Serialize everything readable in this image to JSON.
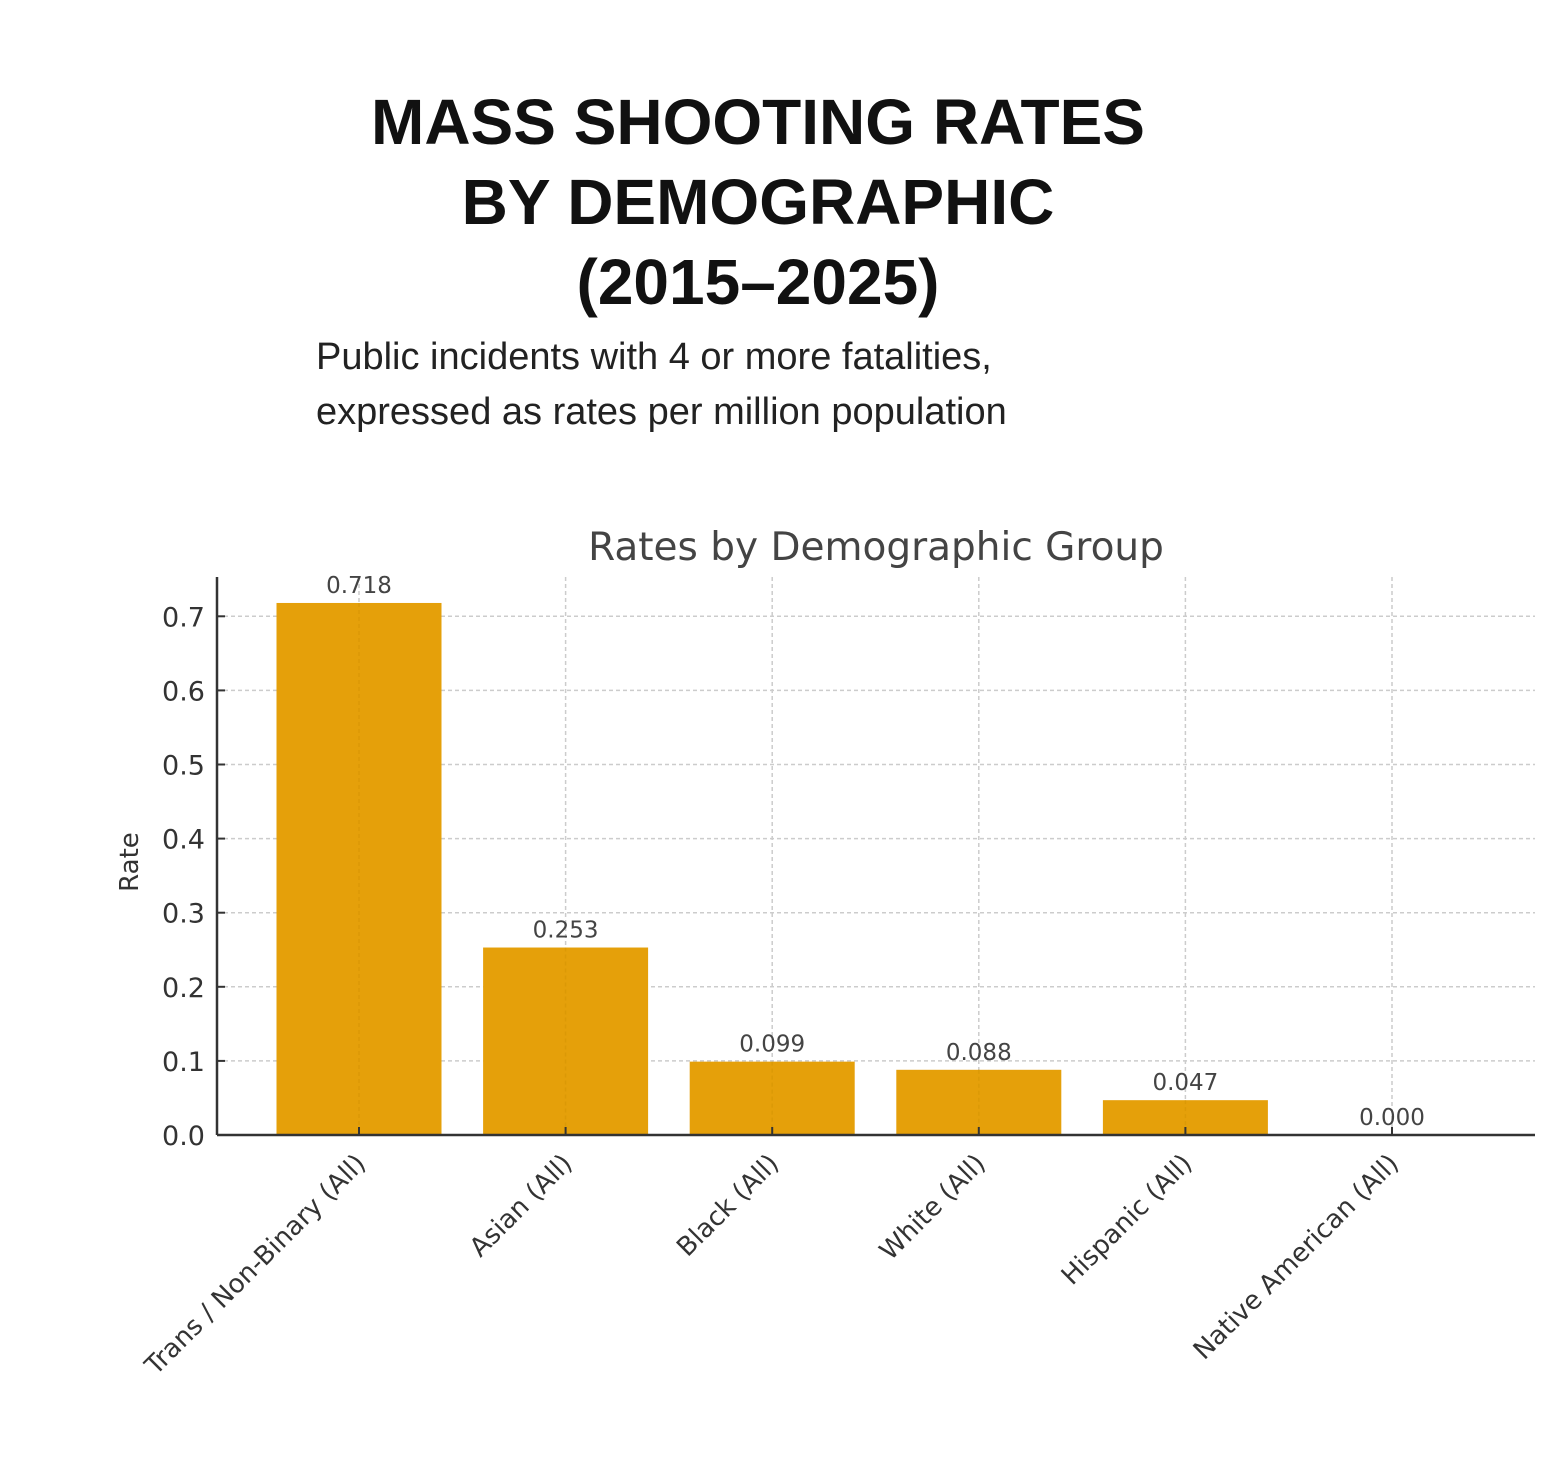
{
  "header": {
    "title_lines": [
      "MASS SHOOTING RATES",
      "BY DEMOGRAPHIC",
      "(2015–2025)"
    ],
    "subtitle_lines": [
      "Public incidents with 4 or more fatalities,",
      "expressed as rates per million population"
    ]
  },
  "chart_data": {
    "type": "bar",
    "title": "Rates by Demographic Group",
    "xlabel": "",
    "ylabel": "Rate",
    "categories": [
      "Trans / Non-Binary (All)",
      "Asian (All)",
      "Black (All)",
      "White (All)",
      "Hispanic (All)",
      "Native American (All)"
    ],
    "values": [
      0.718,
      0.253,
      0.099,
      0.088,
      0.047,
      0.0
    ],
    "data_labels": [
      "0.718",
      "0.253",
      "0.099",
      "0.088",
      "0.047",
      "0.000"
    ],
    "ylim": [
      0,
      0.75
    ],
    "yticks": [
      "0.0",
      "0.1",
      "0.2",
      "0.3",
      "0.4",
      "0.5",
      "0.6",
      "0.7"
    ],
    "grid": true,
    "bar_color": "#E5A00A"
  }
}
